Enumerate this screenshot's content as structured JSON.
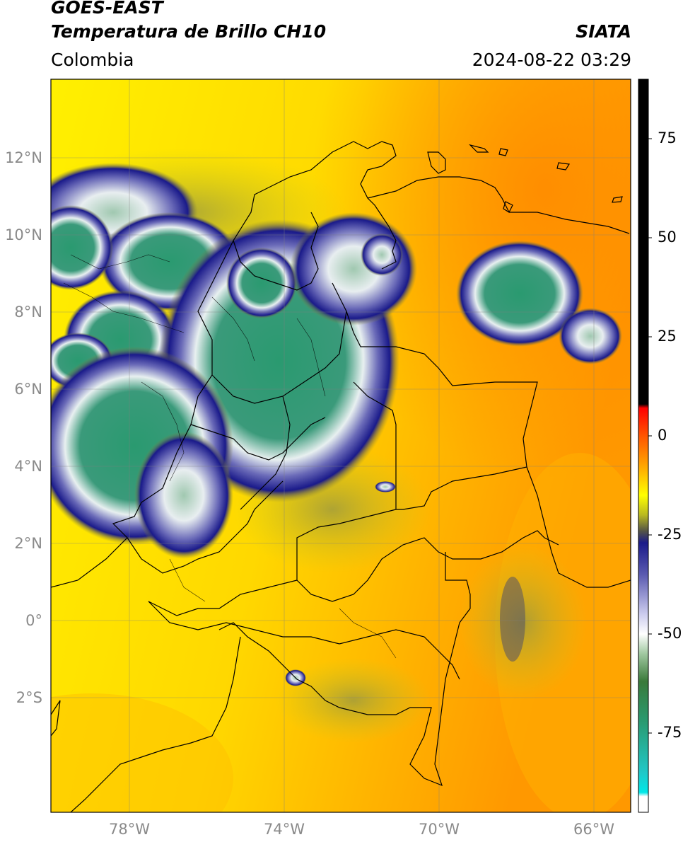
{
  "header": {
    "satellite": "GOES-EAST",
    "product": "Temperatura de Brillo CH10",
    "region": "Colombia",
    "agency": "SIATA",
    "datetime": "2024-08-22 03:29"
  },
  "map": {
    "lat_labels": [
      "12°N",
      "10°N",
      "8°N",
      "6°N",
      "4°N",
      "2°N",
      "0°",
      "2°S"
    ],
    "lon_labels": [
      "78°W",
      "74°W",
      "70°W",
      "66°W"
    ]
  },
  "colorbar": {
    "tick_labels": [
      "75",
      "50",
      "25",
      "0",
      "-25",
      "-50",
      "-75"
    ],
    "stops": [
      {
        "value": 90,
        "color": "#000000"
      },
      {
        "value": 8,
        "color": "#000000"
      },
      {
        "value": 7,
        "color": "#ff0000"
      },
      {
        "value": 0,
        "color": "#ff5500"
      },
      {
        "value": -8,
        "color": "#ffaa00"
      },
      {
        "value": -15,
        "color": "#ffff00"
      },
      {
        "value": -20,
        "color": "#b8b820"
      },
      {
        "value": -24,
        "color": "#555545"
      },
      {
        "value": -27,
        "color": "#1a1a8a"
      },
      {
        "value": -35,
        "color": "#5a5ab0"
      },
      {
        "value": -45,
        "color": "#ccccee"
      },
      {
        "value": -50,
        "color": "#ffffff"
      },
      {
        "value": -55,
        "color": "#a0c8a0"
      },
      {
        "value": -62,
        "color": "#3a7a3a"
      },
      {
        "value": -72,
        "color": "#2a9a70"
      },
      {
        "value": -85,
        "color": "#20c8c8"
      },
      {
        "value": -90,
        "color": "#00e8e8"
      },
      {
        "value": -91,
        "color": "#ffffff"
      },
      {
        "value": -95,
        "color": "#ffffff"
      }
    ]
  }
}
